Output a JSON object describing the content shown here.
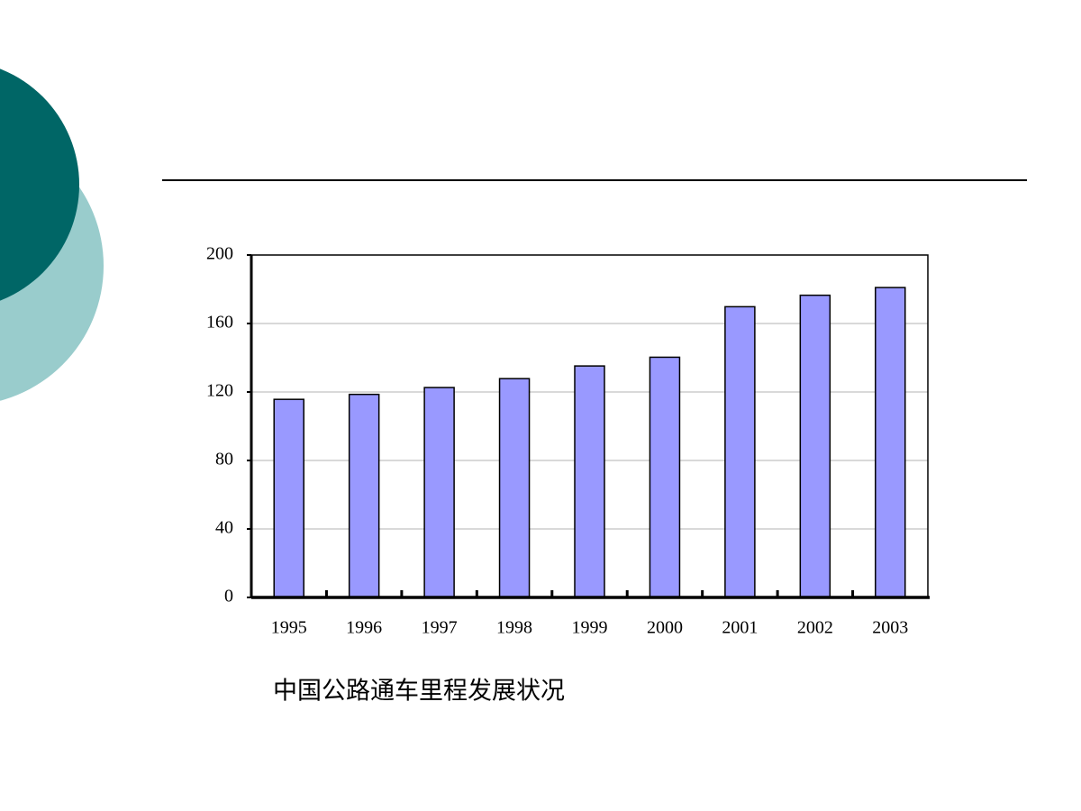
{
  "chart_data": {
    "type": "bar",
    "title": "中国公路通车里程发展状况",
    "categories": [
      "1995",
      "1996",
      "1997",
      "1998",
      "1999",
      "2000",
      "2001",
      "2002",
      "2003"
    ],
    "values": [
      115.7,
      118.6,
      122.6,
      127.8,
      135.2,
      140.3,
      169.8,
      176.5,
      181.0
    ],
    "color": "#9999ff",
    "ylim": [
      0,
      200
    ],
    "yticks": [
      0,
      40,
      80,
      120,
      160,
      200
    ],
    "grid": true
  }
}
